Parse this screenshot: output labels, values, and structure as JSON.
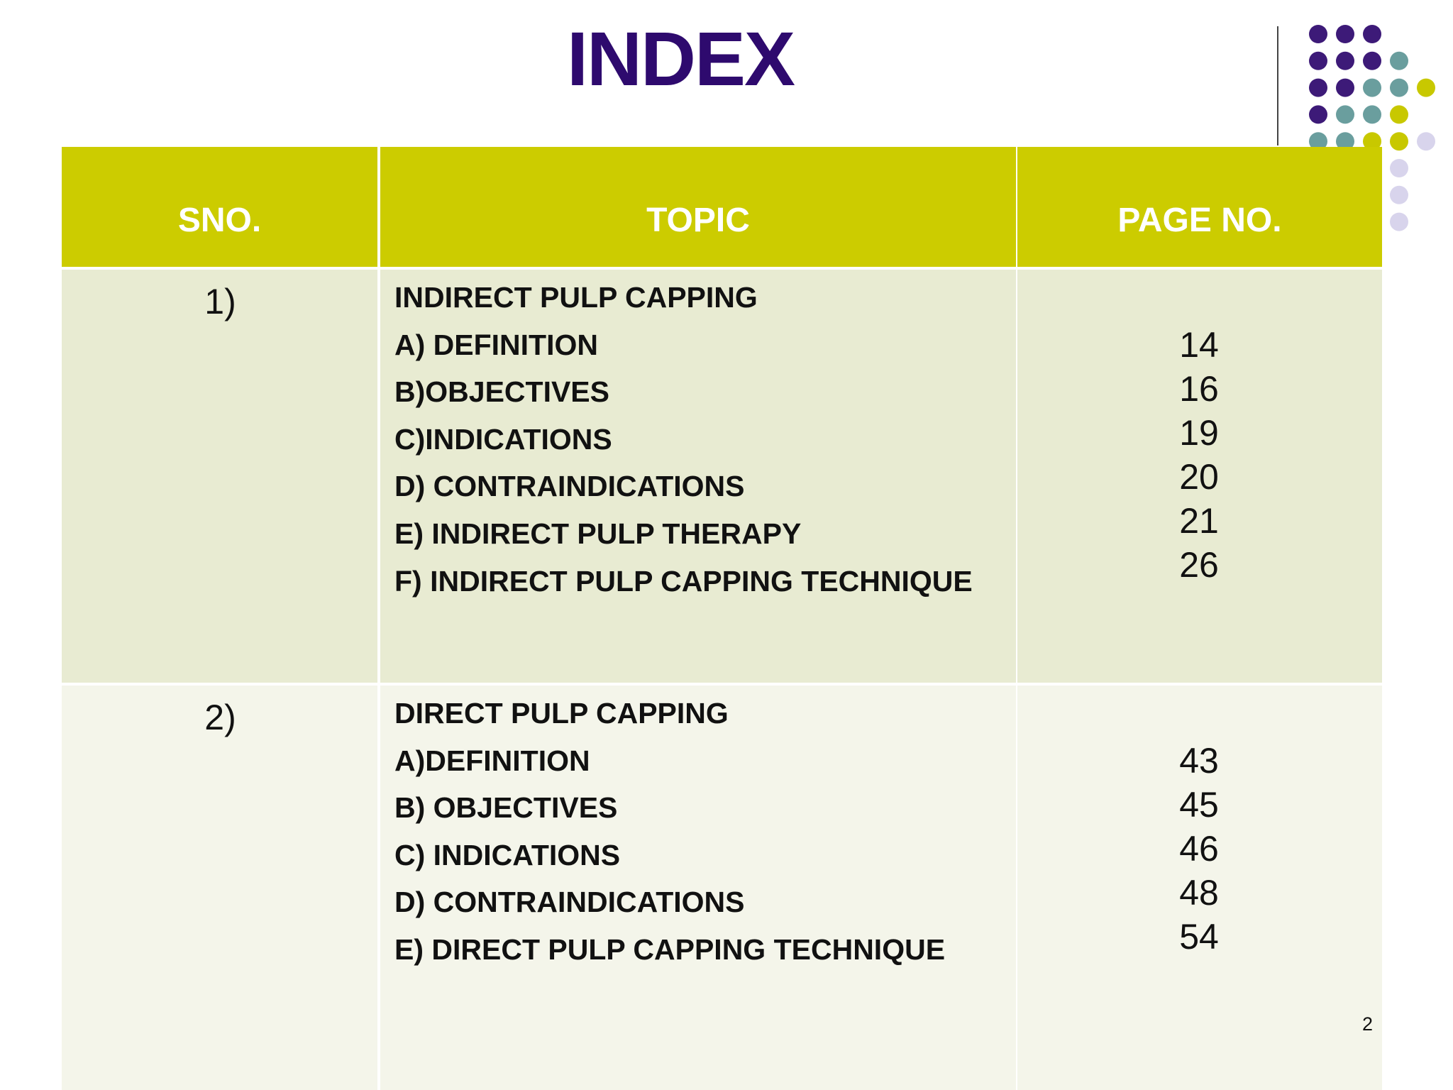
{
  "title": "INDEX",
  "table": {
    "header": [
      "SNO.",
      "TOPIC",
      "PAGE NO."
    ],
    "rows": [
      {
        "sno": "1)",
        "topics": [
          "INDIRECT PULP CAPPING",
          "A) DEFINITION",
          "B)OBJECTIVES",
          "C)INDICATIONS",
          "D) CONTRAINDICATIONS",
          "E) INDIRECT PULP THERAPY",
          "F) INDIRECT PULP CAPPING TECHNIQUE"
        ],
        "pages": [
          "14",
          "16",
          "19",
          "20",
          "21",
          "26"
        ]
      },
      {
        "sno": "2)",
        "topics": [
          "DIRECT PULP CAPPING",
          "A)DEFINITION",
          "B) OBJECTIVES",
          "C) INDICATIONS",
          "D) CONTRAINDICATIONS",
          "E) DIRECT PULP CAPPING TECHNIQUE"
        ],
        "pages": [
          "43",
          "45",
          "46",
          "48",
          "54"
        ]
      }
    ]
  },
  "page_number": "2"
}
